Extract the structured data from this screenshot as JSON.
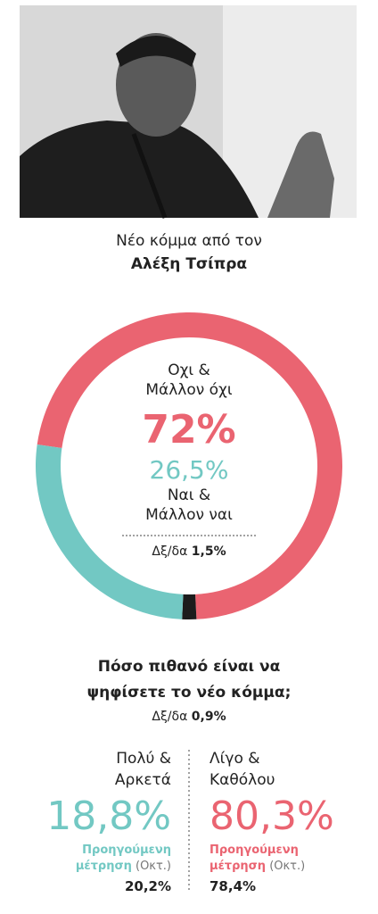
{
  "chart_data": {
    "type": "donut",
    "title": "Νέο κόμμα από τον",
    "subtitle": "Αλέξη Τσίπρα",
    "categories": [
      "Οχι &\nΜάλλον όχι",
      "Δξ/δα",
      "Ναι &\nΜάλλον ναι"
    ],
    "values": [
      72,
      1.5,
      26.5
    ],
    "value_labels": [
      "72%",
      "1,5%",
      "26,5%"
    ],
    "colors": [
      "#ea6471",
      "#1c1c1c",
      "#72c8c3"
    ]
  },
  "poll": {
    "question": "Πόσο πιθανό είναι να\nψηφίσετε το νέο κόμμα;",
    "dont_know": {
      "label": "Δξ/δα",
      "value": "0,9%"
    },
    "answers": [
      {
        "label": "Πολύ &\nΑρκετά",
        "value": "18,8%",
        "previous_label": "Προηγούμενη\nμέτρηση",
        "previous_month": "(Οκτ.)",
        "previous_value": "20,2%",
        "color": "#72c8c3"
      },
      {
        "label": "Λίγο &\nΚαθόλου",
        "value": "80,3%",
        "previous_label": "Προηγούμενη\nμέτρηση",
        "previous_month": "(Οκτ.)",
        "previous_value": "78,4%",
        "color": "#ea6471"
      }
    ]
  }
}
